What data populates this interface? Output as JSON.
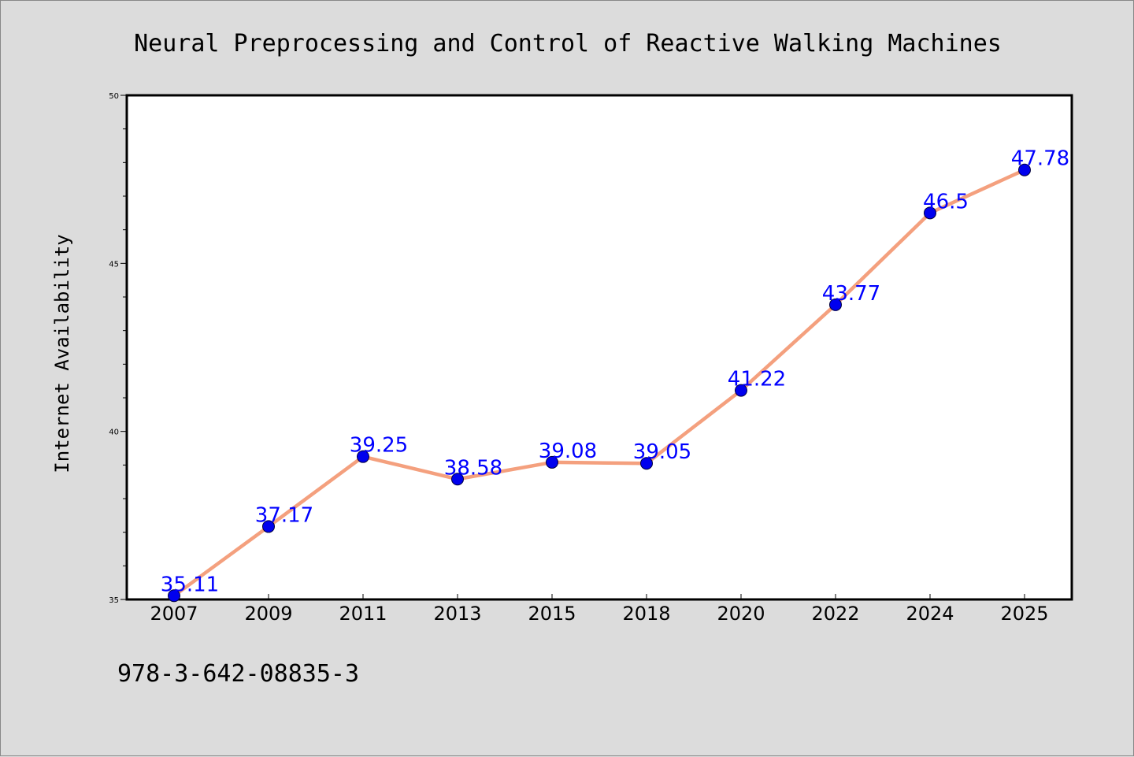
{
  "chart_data": {
    "type": "line",
    "title": "Neural Preprocessing and Control of Reactive Walking Machines",
    "xlabel": "",
    "ylabel": "Internet Availability",
    "categories": [
      "2007",
      "2009",
      "2011",
      "2013",
      "2015",
      "2018",
      "2020",
      "2022",
      "2024",
      "2025"
    ],
    "series": [
      {
        "values": [
          35.11,
          37.17,
          39.25,
          38.58,
          39.08,
          39.05,
          41.22,
          43.77,
          46.5,
          47.78
        ],
        "data_labels": [
          "35.11",
          "37.17",
          "39.25",
          "38.58",
          "39.08",
          "39.05",
          "41.22",
          "43.77",
          "46.5",
          "47.78"
        ]
      }
    ],
    "ylim": [
      35,
      50
    ],
    "yticks": [
      "35",
      "40",
      "45",
      "50"
    ],
    "grid": false,
    "legend": false,
    "colors": {
      "line": "#f4a07e",
      "marker": "#0000ee",
      "data_label": "#0000ff",
      "axis": "#000000",
      "plot_background": "#ffffff",
      "page_background": "#dcdcdc"
    }
  },
  "footer": {
    "isbn": "978-3-642-08835-3"
  }
}
